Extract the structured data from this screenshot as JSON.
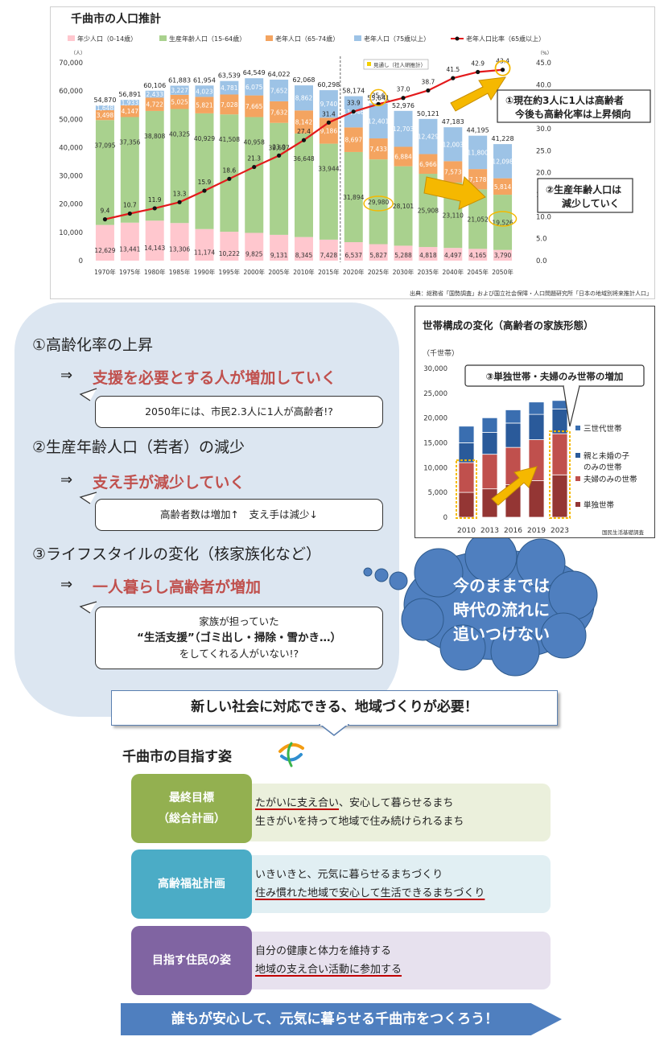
{
  "population_chart": {
    "title": "千曲市の人口推計",
    "unit_left": "（人）",
    "unit_right": "（%）",
    "legend": [
      "年少人口（0-14歳）",
      "生産年齢人口（15-64歳）",
      "老年人口（65-74歳）",
      "老年人口（75歳以上）",
      "老年人口比率（65歳以上）"
    ],
    "projection_label": "見通し（社人研推計）",
    "source": "出典：総務省「国勢調査」および国立社会保障・人口問題研究所「日本の地域別将来推計人口」",
    "annotation_1": [
      "①現在約3人に1人は高齢者",
      "今後も高齢化率は上昇傾向"
    ],
    "annotation_2": [
      "②生産年齢人口は",
      "減少していく"
    ],
    "colors": {
      "youth": "#ffc7ce",
      "working": "#a9d18e",
      "old1": "#f4a460",
      "old2": "#9dc3e6",
      "ratio": "#e31a1c"
    }
  },
  "chart_data": [
    {
      "type": "bar",
      "title": "千曲市の人口推計",
      "categories": [
        "1970年",
        "1975年",
        "1980年",
        "1985年",
        "1990年",
        "1995年",
        "2000年",
        "2005年",
        "2010年",
        "2015年",
        "2020年",
        "2025年",
        "2030年",
        "2035年",
        "2040年",
        "2045年",
        "2050年"
      ],
      "series": [
        {
          "name": "年少人口（0-14歳）",
          "values": [
            12629,
            13441,
            14143,
            13306,
            11174,
            10222,
            9825,
            9131,
            8345,
            7428,
            6537,
            5827,
            5288,
            4818,
            4497,
            4165,
            3790
          ]
        },
        {
          "name": "生産年齢人口（15-64歳）",
          "values": [
            37095,
            37356,
            38808,
            40325,
            40929,
            41508,
            40958,
            39607,
            36648,
            33944,
            31894,
            29980,
            28101,
            25908,
            23110,
            21052,
            19526
          ]
        },
        {
          "name": "老年人口（65-74歳）",
          "values": [
            3498,
            4147,
            4722,
            5025,
            5821,
            7028,
            7665,
            7632,
            8142,
            9186,
            8697,
            7433,
            6884,
            6966,
            7573,
            7178,
            5814
          ]
        },
        {
          "name": "老年人口（75歳以上）",
          "values": [
            1648,
            1933,
            2433,
            3227,
            4023,
            4781,
            6075,
            7652,
            8862,
            9740,
            11046,
            12401,
            12703,
            12429,
            12003,
            11800,
            12098
          ]
        },
        {
          "name": "老年人口比率（65歳以上）",
          "values": [
            9.4,
            10.7,
            11.9,
            13.3,
            15.9,
            18.6,
            21.3,
            23.9,
            27.4,
            31.4,
            33.9,
            35.6,
            37.0,
            38.7,
            41.5,
            42.9,
            43.4
          ]
        }
      ],
      "totals": [
        "54,870",
        "56,891",
        "60,106",
        "61,883",
        "61,954",
        "63,539",
        "64,549",
        "64,022",
        "62,068",
        "60,298",
        "58,174",
        "55,641",
        "52,976",
        "50,121",
        "47,183",
        "44,195",
        "41,228"
      ],
      "ylim": [
        0,
        70000
      ],
      "y2lim": [
        0,
        45
      ],
      "yticks": [
        "0",
        "10,000",
        "20,000",
        "30,000",
        "40,000",
        "50,000",
        "60,000",
        "70,000"
      ],
      "y2ticks": [
        "0.0",
        "5.0",
        "10.0",
        "15.0",
        "20.0",
        "25.0",
        "30.0",
        "35.0",
        "40.0",
        "45.0"
      ]
    },
    {
      "type": "bar",
      "title": "世帯構成の変化（高齢者の家族形態）",
      "ylabel": "（千世帯）",
      "categories": [
        "2010",
        "2013",
        "2016",
        "2019",
        "2023"
      ],
      "series": [
        {
          "name": "単独世帯",
          "values": [
            5018,
            5730,
            6559,
            7369,
            8551
          ]
        },
        {
          "name": "夫婦のみの世帯",
          "values": [
            5998,
            6974,
            7526,
            8270,
            8289
          ]
        },
        {
          "name": "親と未婚の子のみの世帯",
          "values": [
            4000,
            4400,
            4900,
            5100,
            5000
          ]
        },
        {
          "name": "三世代世帯",
          "values": [
            3348,
            2953,
            2668,
            2493,
            1700
          ]
        }
      ],
      "ylim": [
        0,
        30000
      ],
      "yticks": [
        "0",
        "5,000",
        "10,000",
        "15,000",
        "20,000",
        "25,000",
        "30,000"
      ],
      "legend_position": "right",
      "source": "国民生活基礎調査"
    }
  ],
  "household_chart": {
    "title": "世帯構成の変化（高齢者の家族形態）",
    "unit": "（千世帯）",
    "callout": "③単独世帯・夫婦のみ世帯の増加",
    "legend": [
      "三世代世帯",
      "親と未婚の子",
      "のみの世帯",
      "夫婦のみの世帯",
      "単独世帯"
    ],
    "source": "国民生活基礎調査",
    "colors": {
      "single": "#943634",
      "couple": "#c0504d",
      "parent_child": "#2a5a9a",
      "three_gen": "#3a6eb0"
    }
  },
  "issues": [
    {
      "heading": "①高齢化率の上昇",
      "arrow": "⇒",
      "result": "支援を必要とする人が増加していく",
      "note": [
        "2050年には、市民2.3人に1人が高齢者!?"
      ]
    },
    {
      "heading": "②生産年齢人口（若者）の減少",
      "arrow": "⇒",
      "result": "支え手が減少していく",
      "note": [
        "高齢者数は増加↑　支え手は減少↓"
      ]
    },
    {
      "heading": "③ライフスタイルの変化（核家族化など）",
      "arrow": "⇒",
      "result": "一人暮らし高齢者が増加",
      "note": [
        "家族が担っていた",
        "“生活支援”（ゴミ出し・掃除・雪かき…）",
        "をしてくれる人がいない!?"
      ]
    }
  ],
  "cloud": [
    "今のままでは",
    "時代の流れに",
    "追いつけない"
  ],
  "banner": "新しい社会に対応できる、地域づくりが必要！",
  "goal_title": "千曲市の目指す姿",
  "plans": [
    {
      "label": [
        "最終目標",
        "（総合計画）"
      ],
      "items": [
        "・たがいに支え合い、安心して暮らせるまち",
        "・生きがいを持って地域で住み続けられるまち"
      ],
      "underlined": "たがいに支え合い",
      "color": "#93b050",
      "box": "#ebf0dc"
    },
    {
      "label": [
        "高齢福祉計画"
      ],
      "items": [
        "・いきいきと、元気に暮らせるまちづくり",
        "・住み慣れた地域で安心して生活できるまちづくり"
      ],
      "underlined": "住み慣れた地域で安心して生活できるまちづくり",
      "color": "#4bacc6",
      "box": "#e1eff3"
    },
    {
      "label": [
        "目指す住民の姿"
      ],
      "items": [
        "・自分の健康と体力を維持する",
        "・地域の支え合い活動に参加する"
      ],
      "underlined": "地域の支え合い活動に参加する",
      "color": "#8064a2",
      "box": "#e7e1ee"
    }
  ],
  "slogan": "誰もが安心して、元気に暮らせる千曲市をつくろう！"
}
